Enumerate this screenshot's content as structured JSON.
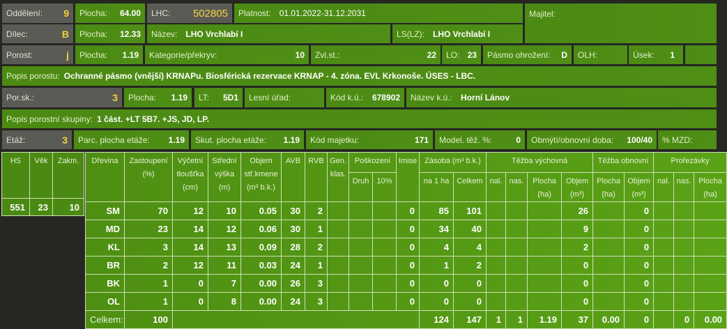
{
  "header": {
    "oddeleni": {
      "label": "Oddělení:",
      "value": "9"
    },
    "plocha1": {
      "label": "Plocha:",
      "value": "64.00"
    },
    "lhc": {
      "label": "LHC:",
      "value": "502805"
    },
    "platnost": {
      "label": "Platnost:",
      "value": "01.01.2022-31.12.2031"
    },
    "majitel": {
      "label": "Majitel:"
    },
    "dilec": {
      "label": "Dílec:",
      "value": "B"
    },
    "plocha2": {
      "label": "Plocha:",
      "value": "12.33"
    },
    "nazev": {
      "label": "Název:",
      "value": "LHO Vrchlabí I"
    },
    "ls": {
      "label": "LS(LZ):",
      "value": "LHO Vrchlabí I"
    },
    "porost": {
      "label": "Porost:",
      "value": "j"
    },
    "plocha3": {
      "label": "Plocha:",
      "value": "1.19"
    },
    "kategorie": {
      "label": "Kategorie/překryv:",
      "value": "10"
    },
    "zvlst": {
      "label": "Zvl.st.:",
      "value": "22"
    },
    "lo": {
      "label": "LO:",
      "value": "23"
    },
    "pasmo": {
      "label": "Pásmo ohrožení:",
      "value": "D"
    },
    "olh": {
      "label": "OLH:"
    },
    "usek": {
      "label": "Úsek:",
      "value": "1"
    },
    "popis_porostu": {
      "label": "Popis porostu:",
      "value": "Ochranné pásmo (vnější) KRNAPu. Biosférická rezervace KRNAP - 4. zóna. EVL Krkonoše. ÚSES - LBC."
    },
    "porsk": {
      "label": "Por.sk.:",
      "value": "3"
    },
    "plocha4": {
      "label": "Plocha:",
      "value": "1.19"
    },
    "lt": {
      "label": "LT:",
      "value": "5D1"
    },
    "lesni_urad": {
      "label": "Lesní úřad:"
    },
    "kod_ku": {
      "label": "Kód k.ú.:",
      "value": "678902"
    },
    "nazev_ku": {
      "label": "Název k.ú.:",
      "value": "Horní Lánov"
    },
    "popis_skupiny": {
      "label": "Popis porostní skupiny:",
      "value": "1 část. +LT 5B7. +JS, JD, LP."
    },
    "etaz": {
      "label": "Etáž:",
      "value": "3"
    },
    "parc_plocha": {
      "label": "Parc. plocha etáže:",
      "value": "1.19"
    },
    "skut_plocha": {
      "label": "Skut. plocha etáže:",
      "value": "1.19"
    },
    "kod_majetku": {
      "label": "Kód majetku:",
      "value": "171"
    },
    "model_tez": {
      "label": "Model. těž. %:",
      "value": "0"
    },
    "obmyti": {
      "label": "Obmýtí/obnovní doba:",
      "value": "100/40"
    },
    "mzd": {
      "label": "% MZD:"
    }
  },
  "left_table": {
    "headers": [
      "HS",
      "Věk",
      "Zakm."
    ],
    "values": [
      "551",
      "23",
      "10"
    ]
  },
  "main_table": {
    "h": {
      "drevina": "Dřevina",
      "zastoupeni": "Zastoupení (%)",
      "vycetni": "Výčetní tloušťka (cm)",
      "stredni": "Střední výška (m)",
      "objem": "Objem stř.kmene (m³ b.k.)",
      "avb": "AVB",
      "rvb": "RVB",
      "gen": "Gen. klas.",
      "poskozeni": "Poškození",
      "imise": "Imise",
      "zasoba": "Zásoba (m³ b.k.)",
      "tezba_vych": "Těžba výchovná",
      "tezba_obn": "Těžba obnovní",
      "prorezavky": "Prořezávky",
      "druh": "Druh",
      "p10": "10%",
      "na1ha": "na 1 ha",
      "celkem": "Celkem",
      "nal": "nal.",
      "nas": "nas.",
      "plocha": "Plocha (ha)",
      "objem_m3": "Objem (m³)"
    },
    "rows": [
      [
        "SM",
        "70",
        "12",
        "10",
        "0.05",
        "30",
        "2",
        "",
        "",
        "",
        "0",
        "85",
        "101",
        "",
        "",
        "",
        "26",
        "",
        "0",
        "",
        "",
        ""
      ],
      [
        "MD",
        "23",
        "14",
        "12",
        "0.06",
        "30",
        "1",
        "",
        "",
        "",
        "0",
        "34",
        "40",
        "",
        "",
        "",
        "9",
        "",
        "0",
        "",
        "",
        ""
      ],
      [
        "KL",
        "3",
        "14",
        "13",
        "0.09",
        "28",
        "2",
        "",
        "",
        "",
        "0",
        "4",
        "4",
        "",
        "",
        "",
        "2",
        "",
        "0",
        "",
        "",
        ""
      ],
      [
        "BR",
        "2",
        "12",
        "11",
        "0.03",
        "24",
        "1",
        "",
        "",
        "",
        "0",
        "1",
        "2",
        "",
        "",
        "",
        "0",
        "",
        "0",
        "",
        "",
        ""
      ],
      [
        "BK",
        "1",
        "0",
        "7",
        "0.00",
        "26",
        "3",
        "",
        "",
        "",
        "0",
        "0",
        "0",
        "",
        "",
        "",
        "0",
        "",
        "0",
        "",
        "",
        ""
      ],
      [
        "OL",
        "1",
        "0",
        "8",
        "0.00",
        "24",
        "3",
        "",
        "",
        "",
        "0",
        "0",
        "0",
        "",
        "",
        "",
        "0",
        "",
        "0",
        "",
        "",
        ""
      ]
    ],
    "total": {
      "label": "Celkem:",
      "zastoupeni": "100",
      "values": [
        "124",
        "147",
        "1",
        "1",
        "1.19",
        "37",
        "0.00",
        "0",
        "",
        "0",
        "0.00"
      ]
    }
  }
}
